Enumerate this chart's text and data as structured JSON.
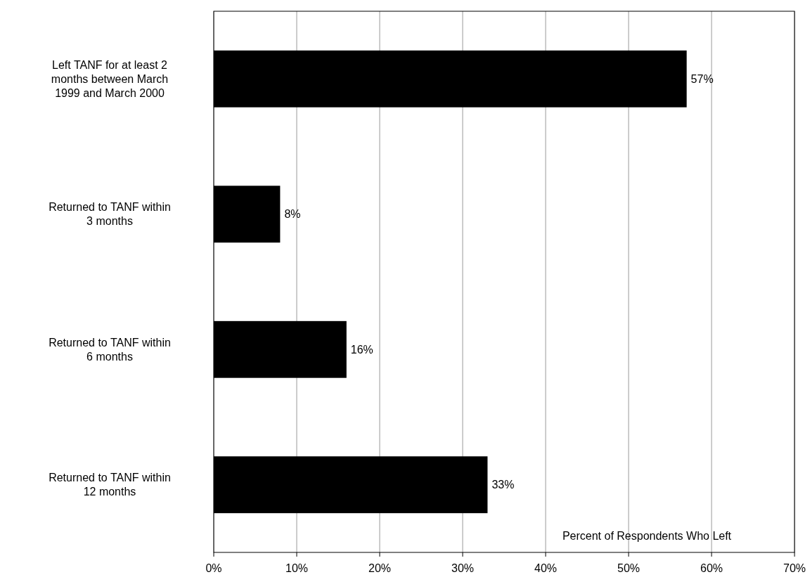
{
  "chart_data": {
    "type": "bar",
    "orientation": "horizontal",
    "categories": [
      "Left TANF for at least 2 months between March 1999 and March 2000",
      "Returned to TANF within 3 months",
      "Returned to TANF within 6 months",
      "Returned to TANF within 12 months"
    ],
    "values": [
      57,
      8,
      16,
      33
    ],
    "color": "#000000",
    "value_labels": [
      "57%",
      "8%",
      "16%",
      "33%"
    ],
    "xlim": [
      0,
      70
    ],
    "xticks": [
      {
        "value": 0,
        "label": "0%"
      },
      {
        "value": 10,
        "label": "10%"
      },
      {
        "value": 20,
        "label": "20%"
      },
      {
        "value": 30,
        "label": "30%"
      },
      {
        "value": 40,
        "label": "40%"
      },
      {
        "value": 50,
        "label": "50%"
      },
      {
        "value": 60,
        "label": "60%"
      },
      {
        "value": 70,
        "label": "70%"
      }
    ],
    "xlabel": "Percent of Respondents Who Left",
    "grid": "x"
  }
}
